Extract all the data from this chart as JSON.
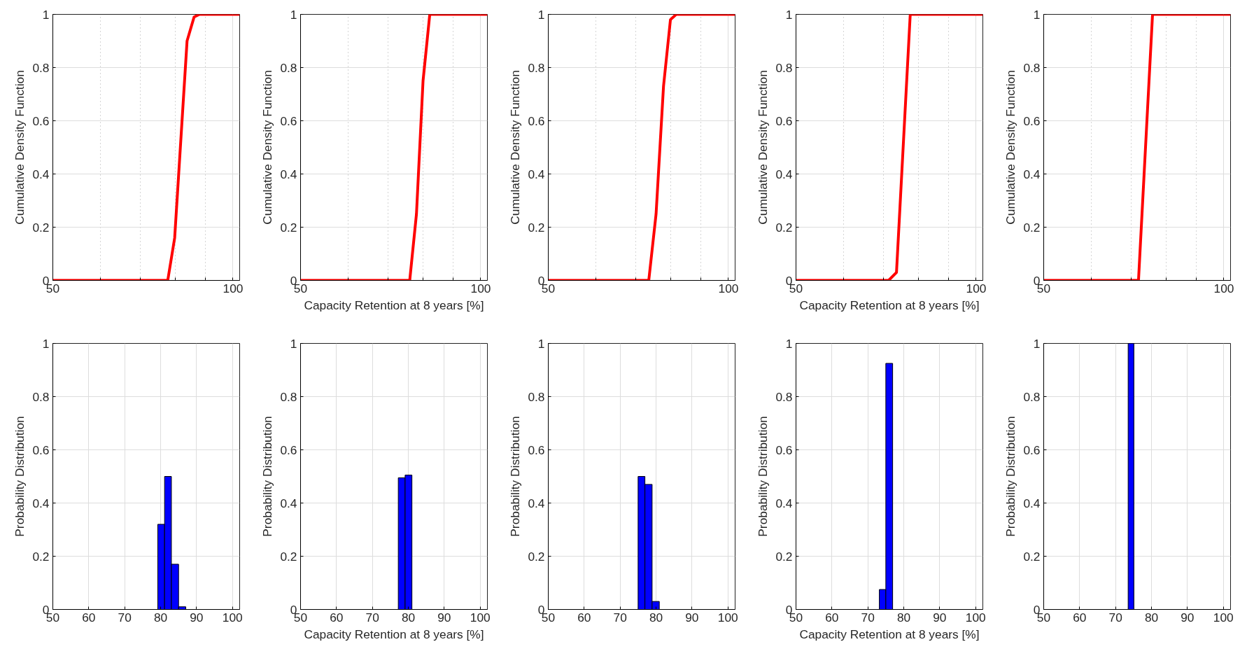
{
  "chart_data": [
    {
      "type": "line",
      "ylabel": "Cumulative Density Function",
      "log": "x",
      "xlim": [
        50,
        102.6
      ],
      "xticks": [
        50,
        {
          "value": 60,
          "label": null
        },
        {
          "value": 70,
          "label": null
        },
        {
          "value": 80,
          "label": null
        },
        {
          "value": 90,
          "label": null
        },
        100
      ],
      "ylim": [
        0,
        1
      ],
      "yticks": [
        0,
        0.2,
        0.4,
        0.6,
        0.8,
        1
      ],
      "grid": true,
      "series": [
        {
          "color": "#ff0000",
          "x": [
            50,
            77.8,
            79.9,
            83.8,
            86.1,
            87.9,
            102.6
          ],
          "values": [
            0,
            0,
            0.16,
            0.9,
            0.99,
            1,
            1
          ]
        }
      ]
    },
    {
      "type": "line",
      "ylabel": "Cumulative Density Function",
      "xlabel": "Capacity Retention at 8 years [%]",
      "log": "x",
      "xlim": [
        50,
        102.6
      ],
      "xticks": [
        50,
        {
          "value": 60,
          "label": null
        },
        {
          "value": 70,
          "label": null
        },
        {
          "value": 80,
          "label": null
        },
        {
          "value": 90,
          "label": null
        },
        100
      ],
      "ylim": [
        0,
        1
      ],
      "yticks": [
        0,
        0.2,
        0.4,
        0.6,
        0.8,
        1
      ],
      "grid": true,
      "series": [
        {
          "color": "#ff0000",
          "x": [
            50,
            76.1,
            78.1,
            80.1,
            82.2,
            102.6
          ],
          "values": [
            0,
            0,
            0.25,
            0.75,
            1,
            1
          ]
        }
      ]
    },
    {
      "type": "line",
      "ylabel": "Cumulative Density Function",
      "log": "x",
      "xlim": [
        50,
        102.6
      ],
      "xticks": [
        50,
        {
          "value": 60,
          "label": null
        },
        {
          "value": 70,
          "label": null
        },
        {
          "value": 80,
          "label": null
        },
        {
          "value": 90,
          "label": null
        },
        100
      ],
      "ylim": [
        0,
        1
      ],
      "yticks": [
        0,
        0.2,
        0.4,
        0.6,
        0.8,
        1
      ],
      "grid": true,
      "series": [
        {
          "color": "#ff0000",
          "x": [
            50,
            73.6,
            75.7,
            77.9,
            80.0,
            81.8,
            102.6
          ],
          "values": [
            0,
            0,
            0.25,
            0.73,
            0.98,
            1,
            1
          ]
        }
      ]
    },
    {
      "type": "line",
      "ylabel": "Cumulative Density Function",
      "xlabel": "Capacity Retention at 8 years [%]",
      "log": "x",
      "xlim": [
        50,
        102.6
      ],
      "xticks": [
        50,
        {
          "value": 60,
          "label": null
        },
        {
          "value": 70,
          "label": null
        },
        {
          "value": 80,
          "label": null
        },
        {
          "value": 90,
          "label": null
        },
        100
      ],
      "ylim": [
        0,
        1
      ],
      "yticks": [
        0,
        0.2,
        0.4,
        0.6,
        0.8,
        1
      ],
      "grid": true,
      "series": [
        {
          "color": "#ff0000",
          "x": [
            50,
            71.4,
            73.6,
            77.6,
            102.6
          ],
          "values": [
            0,
            0,
            0.03,
            1,
            1
          ]
        }
      ]
    },
    {
      "type": "line",
      "ylabel": "Cumulative Density Function",
      "log": "x",
      "xlim": [
        50,
        102.6
      ],
      "xticks": [
        50,
        {
          "value": 60,
          "label": null
        },
        {
          "value": 70,
          "label": null
        },
        {
          "value": 80,
          "label": null
        },
        {
          "value": 90,
          "label": null
        },
        100
      ],
      "ylim": [
        0,
        1
      ],
      "yticks": [
        0,
        0.2,
        0.4,
        0.6,
        0.8,
        1
      ],
      "grid": true,
      "series": [
        {
          "color": "#ff0000",
          "x": [
            50,
            72.0,
            76.0,
            102.6
          ],
          "values": [
            0,
            0,
            1,
            1
          ]
        }
      ]
    },
    {
      "type": "histogram",
      "ylabel": "Probability Distribution",
      "xlim": [
        50,
        102
      ],
      "xticks": [
        50,
        60,
        70,
        80,
        90,
        100
      ],
      "ylim": [
        0,
        1
      ],
      "yticks": [
        0,
        0.2,
        0.4,
        0.6,
        0.8,
        1
      ],
      "grid": true,
      "color": "#0000ff",
      "bins": [
        79.2,
        81.1,
        83.0,
        85.0,
        87.0
      ],
      "values": [
        0.32,
        0.5,
        0.17,
        0.01
      ]
    },
    {
      "type": "histogram",
      "ylabel": "Probability Distribution",
      "xlabel": "Capacity Retention at 8 years [%]",
      "xlim": [
        50,
        102
      ],
      "xticks": [
        50,
        60,
        70,
        80,
        90,
        100
      ],
      "ylim": [
        0,
        1
      ],
      "yticks": [
        0,
        0.2,
        0.4,
        0.6,
        0.8,
        1
      ],
      "grid": true,
      "color": "#0000ff",
      "bins": [
        77.2,
        79.1,
        81.0
      ],
      "values": [
        0.495,
        0.505
      ]
    },
    {
      "type": "histogram",
      "ylabel": "Probability Distribution",
      "xlim": [
        50,
        102
      ],
      "xticks": [
        50,
        60,
        70,
        80,
        90,
        100
      ],
      "ylim": [
        0,
        1
      ],
      "yticks": [
        0,
        0.2,
        0.4,
        0.6,
        0.8,
        1
      ],
      "grid": true,
      "color": "#0000ff",
      "bins": [
        75.0,
        76.9,
        78.9,
        80.9
      ],
      "values": [
        0.5,
        0.47,
        0.03
      ]
    },
    {
      "type": "histogram",
      "ylabel": "Probability Distribution",
      "xlabel": "Capacity Retention at 8 years [%]",
      "xlim": [
        50,
        102
      ],
      "xticks": [
        50,
        60,
        70,
        80,
        90,
        100
      ],
      "ylim": [
        0,
        1
      ],
      "yticks": [
        0,
        0.2,
        0.4,
        0.6,
        0.8,
        1
      ],
      "grid": true,
      "color": "#0000ff",
      "bins": [
        73.2,
        75.0,
        76.9
      ],
      "values": [
        0.075,
        0.925
      ]
    },
    {
      "type": "histogram",
      "ylabel": "Probability Distribution",
      "xlim": [
        50,
        102
      ],
      "xticks": [
        50,
        60,
        70,
        80,
        90,
        100
      ],
      "ylim": [
        0,
        1
      ],
      "yticks": [
        0,
        0.2,
        0.4,
        0.6,
        0.8,
        1
      ],
      "grid": true,
      "color": "#0000ff",
      "bins": [
        73.5,
        75.1
      ],
      "values": [
        1
      ]
    }
  ]
}
